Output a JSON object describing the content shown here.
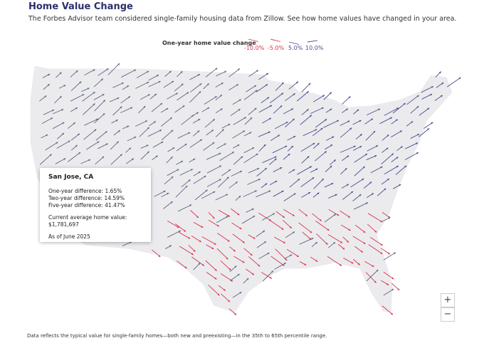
{
  "header": {
    "title": "Home Value Change",
    "subtitle": "The Forbes Advisor team considered single-family housing data from Zillow. See how home values have changed in your area."
  },
  "legend": {
    "title": "One-year home value change",
    "labels": [
      "-10.0%",
      "-5.0%",
      "5.0%",
      "10.0%"
    ]
  },
  "tooltip": {
    "place": "San Jose, CA",
    "lines": [
      "One-year difference: 1.65%",
      "Two-year difference: 14.59%",
      "Five-year difference: 41.47%"
    ],
    "value_label": "Current average home value:",
    "value": "$1,781,697",
    "as_of": "As of June 2025"
  },
  "zoom": {
    "in": "+",
    "out": "−"
  },
  "footnote": "Data reflects the typical value for single-family homes—both new and preexisting—in the 35th to 65th percentile range."
}
